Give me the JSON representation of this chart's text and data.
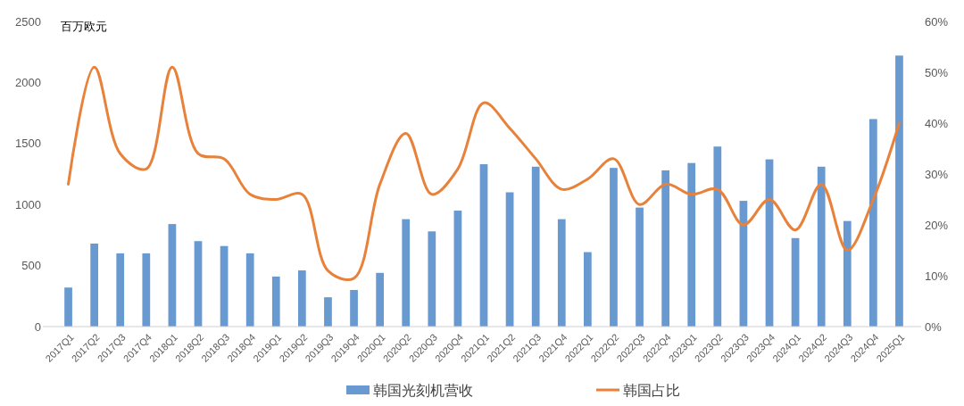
{
  "chart_data": {
    "type": "bar",
    "ylabel": "百万欧元",
    "categories": [
      "2017Q1",
      "2017Q2",
      "2017Q3",
      "2017Q4",
      "2018Q1",
      "2018Q2",
      "2018Q3",
      "2018Q4",
      "2019Q1",
      "2019Q2",
      "2019Q3",
      "2019Q4",
      "2020Q1",
      "2020Q2",
      "2020Q3",
      "2020Q4",
      "2021Q1",
      "2021Q2",
      "2021Q3",
      "2021Q4",
      "2022Q1",
      "2022Q2",
      "2022Q3",
      "2022Q4",
      "2023Q1",
      "2023Q2",
      "2023Q3",
      "2023Q4",
      "2024Q1",
      "2024Q2",
      "2024Q3",
      "2024Q4",
      "2025Q1"
    ],
    "series": [
      {
        "name": "韩国光刻机营收",
        "color": "#6899d0",
        "values": [
          320,
          680,
          600,
          600,
          840,
          700,
          660,
          600,
          410,
          460,
          240,
          300,
          440,
          880,
          780,
          950,
          1330,
          1100,
          1310,
          880,
          610,
          1300,
          975,
          1280,
          1340,
          1475,
          1030,
          1370,
          725,
          1310,
          865,
          1700,
          2220
        ]
      },
      {
        "name": "韩国占比",
        "type": "line",
        "axis": "y2",
        "color": "#e8813a",
        "values": [
          28,
          51,
          34,
          31,
          51,
          34,
          33,
          26,
          25,
          26,
          11,
          9.5,
          28,
          38,
          26,
          31,
          44,
          39,
          33,
          27,
          29,
          33,
          24,
          28,
          26,
          27,
          20,
          25,
          19,
          28,
          15,
          25,
          40
        ]
      }
    ],
    "ylim": [
      0,
      2500
    ],
    "yticks": [
      0,
      500,
      1000,
      1500,
      2000,
      2500
    ],
    "y2lim": [
      0,
      60
    ],
    "y2ticks": [
      {
        "value": 0,
        "label": "0%"
      },
      {
        "value": 10,
        "label": "10%"
      },
      {
        "value": 20,
        "label": "20%"
      },
      {
        "value": 30,
        "label": "30%"
      },
      {
        "value": 40,
        "label": "40%"
      },
      {
        "value": 50,
        "label": "50%"
      },
      {
        "value": 60,
        "label": "60%"
      }
    ],
    "grid": false,
    "legend": "bottom",
    "marker": "none",
    "line_style": "solid"
  }
}
